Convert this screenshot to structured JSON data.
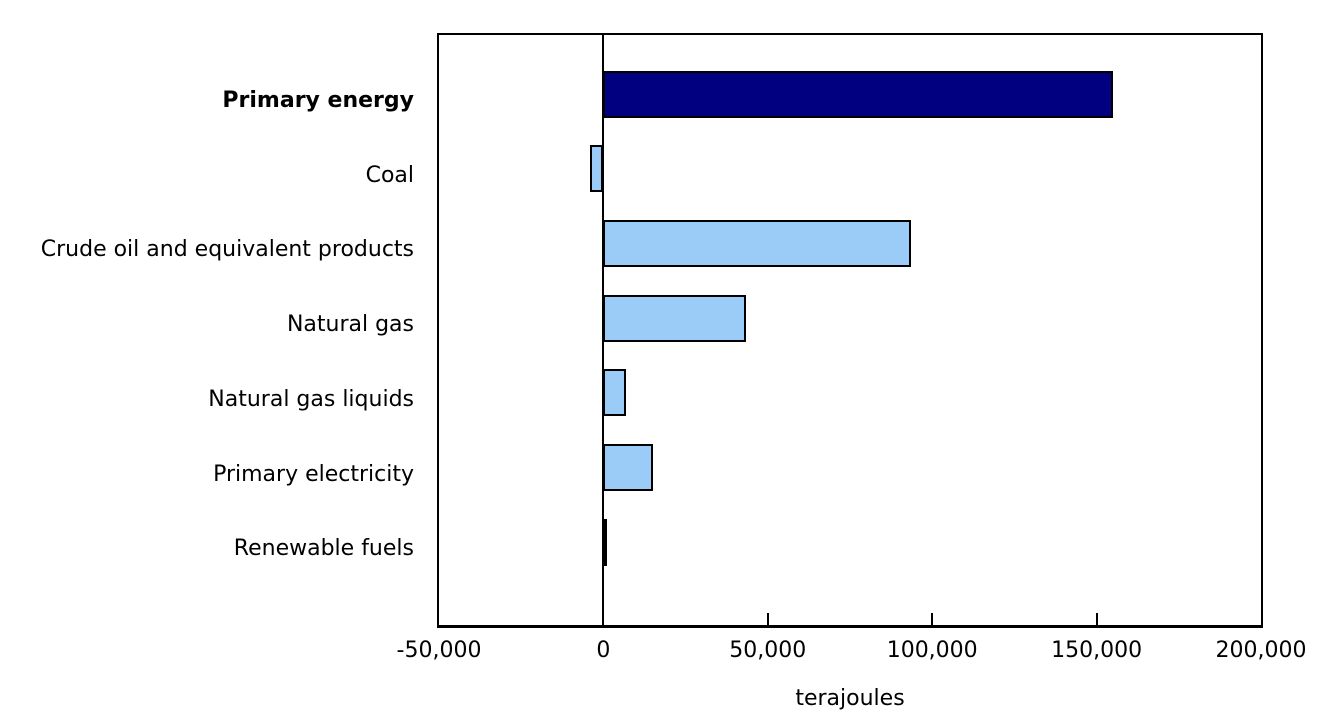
{
  "chart_data": {
    "type": "bar",
    "orientation": "horizontal",
    "title": "",
    "xlabel": "terajoules",
    "ylabel": "",
    "units": "terajoules",
    "xlim": [
      -50000,
      200000
    ],
    "grid": false,
    "legend": "none",
    "categories": [
      "Primary energy",
      "Coal",
      "Crude oil and equivalent products",
      "Natural gas",
      "Natural gas liquids",
      "Primary electricity",
      "Renewable fuels"
    ],
    "values": [
      155000,
      -4000,
      93500,
      43500,
      7000,
      15000,
      500
    ],
    "bar_colors": [
      "#000080",
      "#9bcbf7",
      "#9bcbf7",
      "#9bcbf7",
      "#9bcbf7",
      "#9bcbf7",
      "#9bcbf7"
    ],
    "emphasized_category_index": 0,
    "x_ticks": [
      {
        "value": -50000,
        "label": "-50,000",
        "mark": false
      },
      {
        "value": 0,
        "label": "0",
        "mark": false
      },
      {
        "value": 50000,
        "label": "50,000",
        "mark": true
      },
      {
        "value": 100000,
        "label": "100,000",
        "mark": true
      },
      {
        "value": 150000,
        "label": "150,000",
        "mark": true
      },
      {
        "value": 200000,
        "label": "200,000",
        "mark": false
      }
    ]
  },
  "colors": {
    "emphasis_bar": "#000080",
    "default_bar": "#9bcbf7",
    "bar_border": "#000000",
    "axis": "#000000",
    "background": "#ffffff",
    "text": "#000000"
  }
}
